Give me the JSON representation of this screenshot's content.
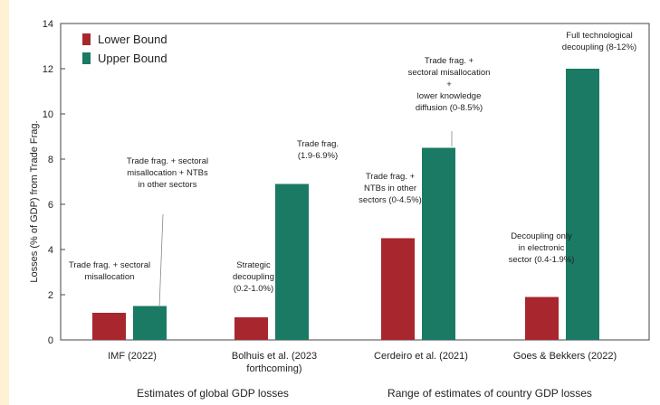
{
  "chart_data": {
    "type": "bar",
    "ylabel": "Losses (% of GDP) from Trade Frag.",
    "ylim": [
      0,
      14
    ],
    "yticks": [
      0,
      2,
      4,
      6,
      8,
      10,
      12,
      14
    ],
    "grid": false,
    "legend_position": "top-left",
    "categories": [
      "IMF (2022)",
      "Bolhuis et al. (2023 forthcoming)",
      "Cerdeiro et al. (2021)",
      "Goes & Bekkers (2022)"
    ],
    "category_lines": [
      [
        "IMF (2022)"
      ],
      [
        "Bolhuis et al. (2023",
        "forthcoming)"
      ],
      [
        "Cerdeiro et al. (2021)"
      ],
      [
        "Goes & Bekkers (2022)"
      ]
    ],
    "series": [
      {
        "name": "Lower Bound",
        "color": "#a8272f",
        "values": [
          1.2,
          1.0,
          4.5,
          1.9
        ]
      },
      {
        "name": "Upper Bound",
        "color": "#1a7a63",
        "values": [
          1.5,
          6.9,
          8.5,
          12.0
        ]
      }
    ],
    "group_labels": [
      "Estimates of global GDP losses",
      "Range of estimates of country GDP losses"
    ],
    "annotations": [
      {
        "lines": [
          "Trade frag. + sectoral",
          "misallocation"
        ]
      },
      {
        "lines": [
          "Trade frag. + sectoral",
          "misallocation + NTBs",
          "in other sectors"
        ]
      },
      {
        "lines": [
          "Strategic",
          "decoupling",
          "(0.2-1.0%)"
        ]
      },
      {
        "lines": [
          "Trade frag.",
          "(1.9-6.9%)"
        ]
      },
      {
        "lines": [
          "Trade frag. +",
          "NTBs in other",
          "sectors (0-4.5%)"
        ]
      },
      {
        "lines": [
          "Trade frag. +",
          "sectoral misallocation",
          "+",
          "lower knowledge",
          "diffusion (0-8.5%)"
        ]
      },
      {
        "lines": [
          "Decoupling only",
          "in electronic",
          "sector (0.4-1.9%)"
        ]
      },
      {
        "lines": [
          "Full technological",
          "decoupling (8-12%)"
        ]
      }
    ]
  }
}
